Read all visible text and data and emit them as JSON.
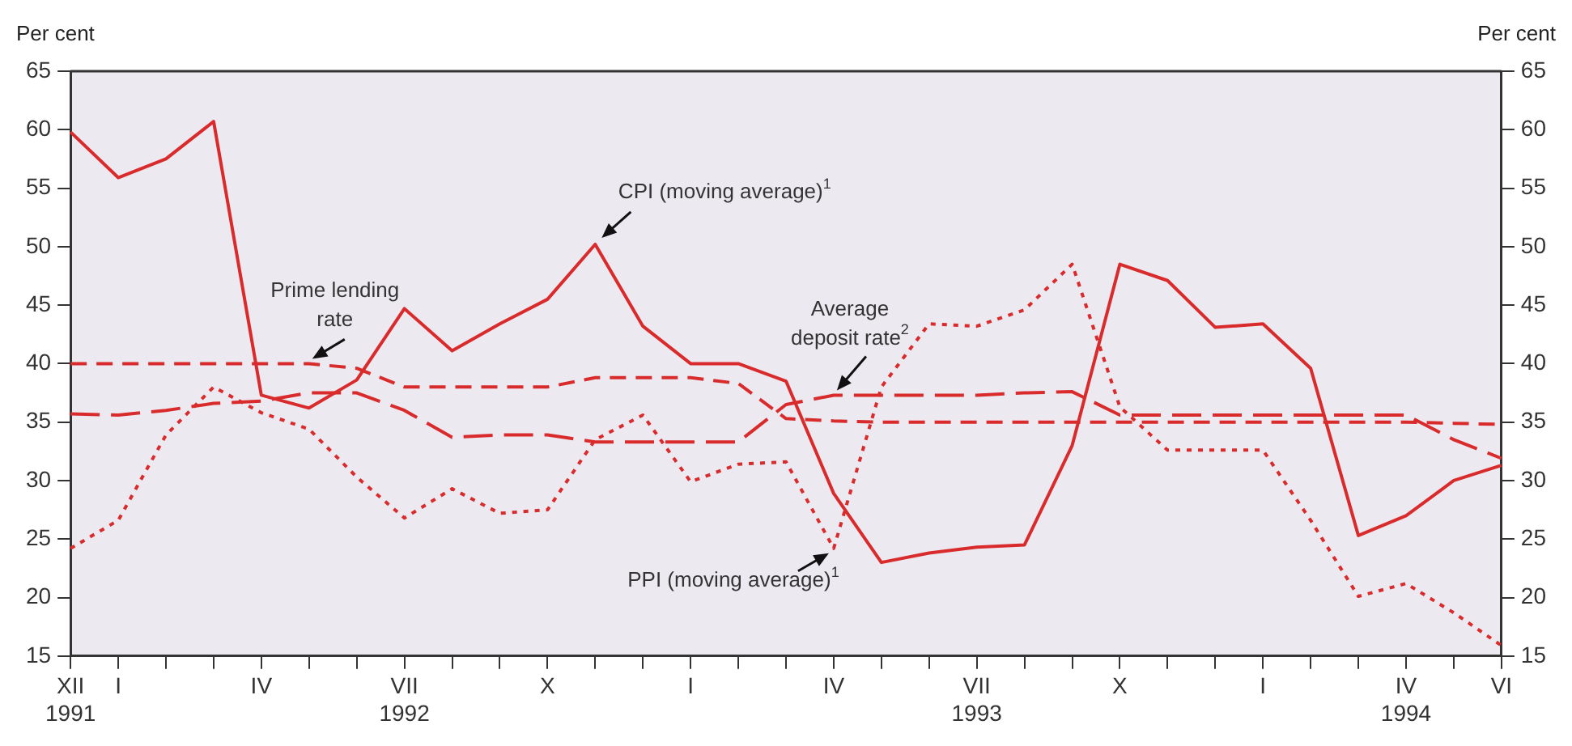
{
  "chart_data": {
    "type": "line",
    "ylabel": "Per cent",
    "y2label": "Per cent",
    "categories": [
      "XII 1991",
      "I",
      null,
      null,
      "IV",
      null,
      null,
      "VII 1992",
      null,
      null,
      "X",
      null,
      null,
      "I",
      null,
      null,
      "IV",
      null,
      null,
      "VII 1993",
      null,
      null,
      "X",
      null,
      null,
      "I",
      null,
      null,
      "IV 1994",
      null,
      "VI"
    ],
    "series": [
      {
        "name": "CPI (moving average)$^{1}$",
        "color": "#d92b2b",
        "line_style": "solid",
        "values": [
          59.8,
          55.9,
          57.5,
          60.7,
          37.3,
          36.2,
          38.6,
          44.7,
          41.1,
          43.4,
          45.5,
          50.2,
          43.2,
          40.0,
          40.0,
          38.5,
          28.9,
          23.0,
          23.8,
          24.3,
          24.5,
          33.0,
          48.5,
          47.1,
          43.1,
          43.4,
          39.6,
          25.3,
          27.0,
          30.0,
          31.3
        ]
      },
      {
        "name": "Prime lending rate",
        "color": "#d92b2b",
        "line_style": "dashed",
        "values": [
          40.0,
          40.0,
          40.0,
          40.0,
          40.0,
          40.0,
          39.6,
          38.0,
          38.0,
          38.0,
          38.0,
          38.8,
          38.8,
          38.8,
          38.3,
          35.3,
          35.1,
          35.0,
          35.0,
          35.0,
          35.0,
          35.0,
          35.0,
          35.0,
          35.0,
          35.0,
          35.0,
          35.0,
          35.0,
          34.9,
          34.8
        ]
      },
      {
        "name": "Average deposit rate$^{2}$",
        "color": "#d92b2b",
        "line_style": "longdash",
        "values": [
          35.7,
          35.6,
          36.0,
          36.6,
          36.8,
          37.5,
          37.5,
          36.0,
          33.7,
          33.9,
          33.9,
          33.3,
          33.3,
          33.3,
          33.3,
          36.5,
          37.3,
          37.3,
          37.3,
          37.3,
          37.5,
          37.6,
          35.6,
          35.6,
          35.6,
          35.6,
          35.6,
          35.6,
          35.6,
          33.5,
          31.9
        ]
      },
      {
        "name": "PPI (moving average)$^{1}$",
        "color": "#d92b2b",
        "line_style": "dotted",
        "values": [
          24.2,
          26.6,
          33.9,
          38.0,
          35.8,
          34.4,
          30.3,
          26.8,
          29.3,
          27.2,
          27.5,
          33.5,
          35.6,
          29.9,
          31.4,
          31.6,
          24.2,
          38.0,
          43.4,
          43.2,
          44.6,
          48.5,
          36.3,
          32.6,
          32.6,
          32.6,
          26.6,
          20.1,
          21.2,
          18.7,
          15.9
        ]
      }
    ],
    "ylim": [
      15,
      65
    ],
    "yticks": [
      15,
      20,
      25,
      30,
      35,
      40,
      45,
      50,
      55,
      60,
      65
    ],
    "y2lim": [
      15,
      65
    ],
    "y2ticks": [
      15,
      20,
      25,
      30,
      35,
      40,
      45,
      50,
      55,
      60,
      65
    ],
    "grid": false,
    "legend": false
  }
}
